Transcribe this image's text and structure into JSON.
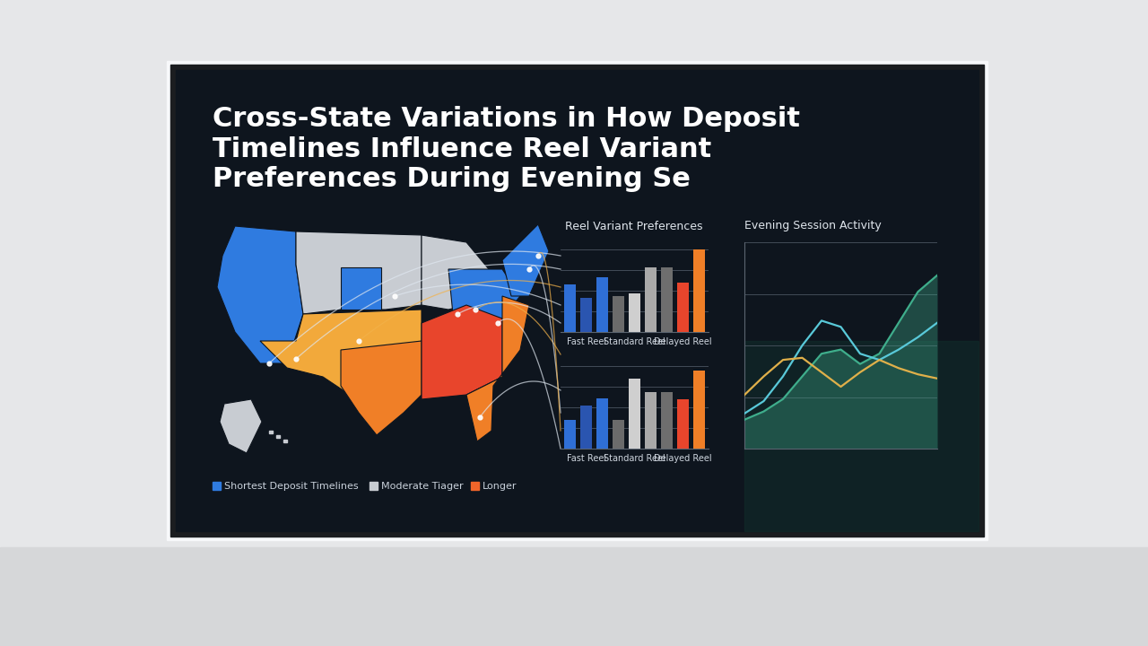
{
  "title": "Cross-State Variations in How Deposit Timelines Influence Reel Variant Preferences During Evening Se",
  "map": {
    "legend": [
      {
        "label": "Shortest Deposit Timelines",
        "color": "#2f7be0"
      },
      {
        "label": "Moderate Tiager",
        "color": "#c8ccd2"
      },
      {
        "label": "Longer",
        "color": "#f0652a"
      }
    ]
  },
  "chart_data": [
    {
      "type": "bar",
      "title": "Reel Variant Preferences",
      "categories": [
        null,
        "Fast Reel",
        null,
        null,
        "Standard Reel",
        null,
        null,
        "Delayed Reel",
        null
      ],
      "values": [
        58,
        41,
        66,
        43,
        47,
        78,
        78,
        60,
        100
      ],
      "colors": [
        "#2f6fd6",
        "#2a55b0",
        "#2f6fd6",
        "#6b6b6b",
        "#cfcfcf",
        "#a9a9a9",
        "#6e6e6e",
        "#e8452c",
        "#f07f27"
      ],
      "ylim": [
        0,
        100
      ],
      "yticks": [
        0,
        25,
        50,
        75,
        100
      ],
      "grid": true,
      "tick_labels": "x"
    },
    {
      "type": "bar",
      "categories": [
        null,
        "Fast Reel",
        null,
        null,
        "Standard Reel",
        null,
        null,
        "Delayed Reel",
        null
      ],
      "values": [
        35,
        52,
        61,
        35,
        85,
        68,
        68,
        60,
        95
      ],
      "colors": [
        "#2f6fd6",
        "#2a55b0",
        "#2f6fd6",
        "#6b6b6b",
        "#cfcfcf",
        "#a9a9a9",
        "#6e6e6e",
        "#e8452c",
        "#f07f27"
      ],
      "ylim": [
        0,
        100
      ],
      "yticks": [
        0,
        25,
        50,
        75,
        100
      ],
      "grid": true,
      "tick_labels": "x"
    },
    {
      "type": "line",
      "title": "Evening Session Activity",
      "x": [
        0,
        1,
        2,
        3,
        4,
        5,
        6,
        7,
        8,
        9,
        10
      ],
      "series": [
        {
          "color": "#3fae8c",
          "type": "area",
          "values": [
            14,
            18,
            24,
            35,
            46,
            48,
            41,
            46,
            61,
            76,
            84
          ]
        },
        {
          "color": "#59c9d9",
          "values": [
            17,
            23,
            35,
            50,
            62,
            59,
            46,
            43,
            48,
            54,
            61
          ]
        },
        {
          "color": "#e0b04a",
          "values": [
            26,
            35,
            43,
            44,
            37,
            30,
            37,
            43,
            39,
            36,
            34
          ]
        }
      ],
      "xlim": [
        0,
        10
      ],
      "xticks": [
        0,
        10
      ],
      "ylim": [
        0,
        100
      ],
      "yticks": [
        0,
        25,
        50,
        75,
        100
      ],
      "grid": true,
      "tick_labels": false
    }
  ]
}
